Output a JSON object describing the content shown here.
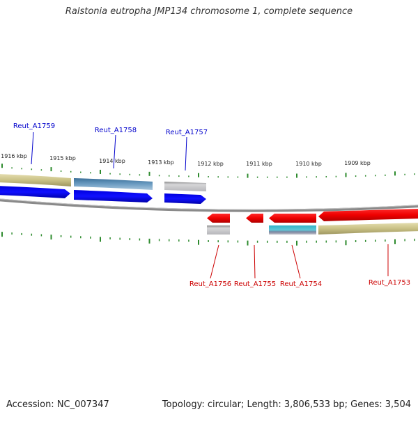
{
  "title": "Ralstonia eutropha JMP134 chromosome 1, complete sequence",
  "footer": {
    "accession": "Accession: NC_007347",
    "topology": "Topology: circular; Length: 3,806,533 bp; Genes: 3,504"
  },
  "scale": {
    "ticks": [
      "1916 kbp",
      "1915 kbp",
      "1914 kbp",
      "1913 kbp",
      "1912 kbp",
      "1911 kbp",
      "1910 kbp",
      "1909 kbp"
    ]
  },
  "genes": {
    "forward": [
      "Reut_A1759",
      "Reut_A1758",
      "Reut_A1757"
    ],
    "reverse": [
      "Reut_A1756",
      "Reut_A1755",
      "Reut_A1754",
      "Reut_A1753"
    ]
  },
  "colors": {
    "forward_label": "#0000cc",
    "reverse_label": "#cc0000",
    "forward_arrow": "#0000ee",
    "reverse_arrow": "#ee0000",
    "khaki_band": "#c9c185",
    "steelblue_band": "#4a7fa8",
    "gray_band": "#c8c8cc",
    "cyan_band": "#3bb8cc",
    "ruler": "#2e8b2e",
    "backbone": "#8a8a8a"
  }
}
